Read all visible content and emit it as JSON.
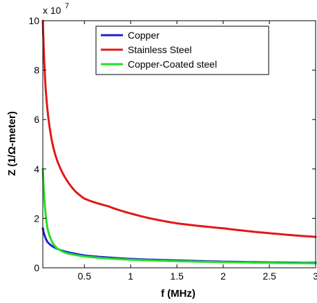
{
  "chart_data": {
    "type": "line",
    "title": "",
    "xlabel": "f (MHz)",
    "ylabel": "Z (1/Ω-meter)",
    "y_exponent_label": "x 10",
    "y_exponent_power": "7",
    "y_multiplier": 10000000,
    "xlim": [
      0.05,
      3
    ],
    "ylim": [
      0,
      10
    ],
    "x_ticks": [
      0.5,
      1,
      1.5,
      2,
      2.5,
      3
    ],
    "x_tick_labels": [
      "0.5",
      "1",
      "1.5",
      "2",
      "2.5",
      "3"
    ],
    "y_ticks": [
      0,
      2,
      4,
      6,
      8,
      10
    ],
    "y_tick_labels": [
      "0",
      "2",
      "4",
      "6",
      "8",
      "10"
    ],
    "grid": false,
    "legend_position": "top-center",
    "series": [
      {
        "name": "Copper",
        "color": "#1f1fd6",
        "x": [
          0.05,
          0.08,
          0.1,
          0.15,
          0.2,
          0.3,
          0.4,
          0.5,
          0.75,
          1.0,
          1.5,
          2.0,
          2.5,
          3.0
        ],
        "y": [
          1.6,
          1.2,
          1.05,
          0.88,
          0.78,
          0.65,
          0.57,
          0.5,
          0.42,
          0.36,
          0.3,
          0.25,
          0.22,
          0.2
        ]
      },
      {
        "name": "Stainless Steel",
        "color": "#e01818",
        "x": [
          0.05,
          0.06,
          0.08,
          0.1,
          0.15,
          0.2,
          0.3,
          0.4,
          0.5,
          0.75,
          1.0,
          1.5,
          2.0,
          2.5,
          3.0
        ],
        "y": [
          10.0,
          8.9,
          7.3,
          6.4,
          5.1,
          4.4,
          3.6,
          3.1,
          2.8,
          2.5,
          2.2,
          1.8,
          1.6,
          1.4,
          1.25
        ]
      },
      {
        "name": "Copper-Coated steel",
        "color": "#22e022",
        "x": [
          0.05,
          0.06,
          0.08,
          0.1,
          0.15,
          0.2,
          0.3,
          0.4,
          0.5,
          0.75,
          1.0,
          1.5,
          2.0,
          2.5,
          3.0
        ],
        "y": [
          4.0,
          3.2,
          2.2,
          1.6,
          1.05,
          0.8,
          0.6,
          0.52,
          0.46,
          0.38,
          0.33,
          0.27,
          0.23,
          0.2,
          0.18
        ]
      }
    ]
  }
}
